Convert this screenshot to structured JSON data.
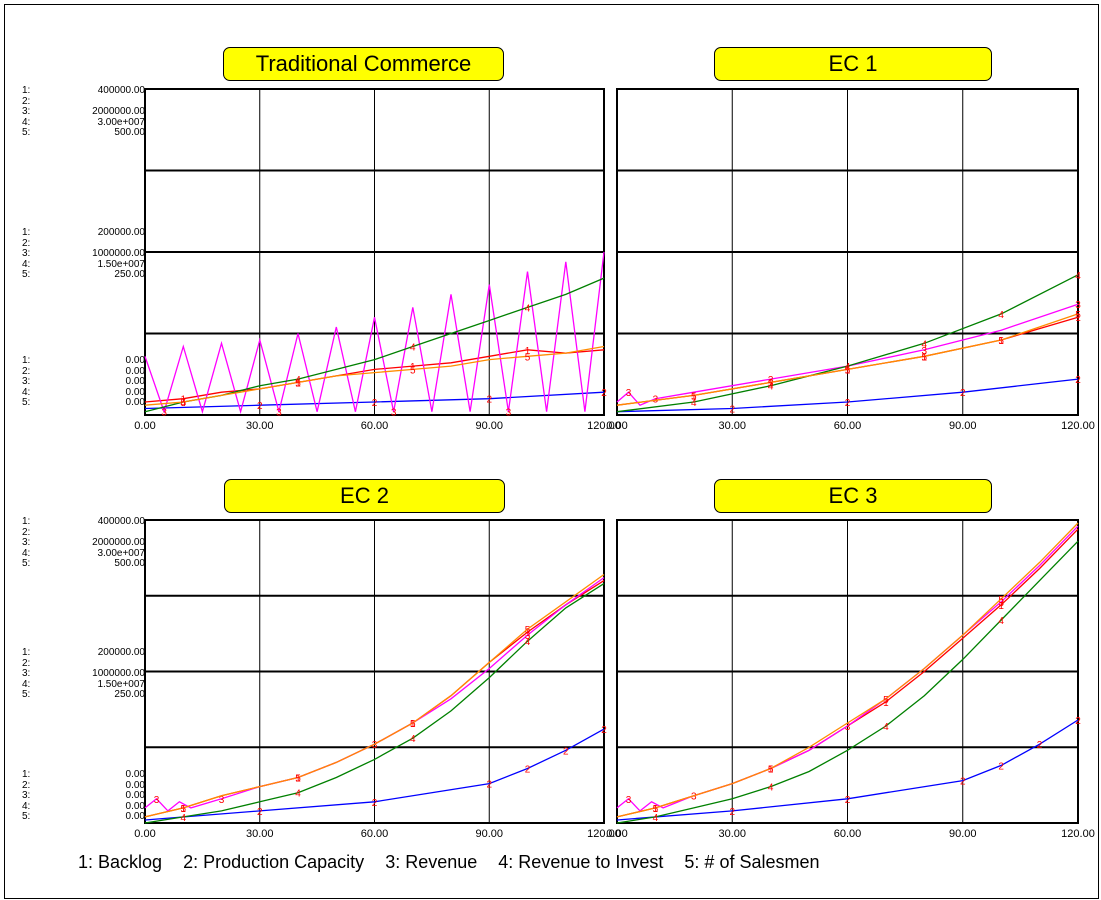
{
  "legend": [
    {
      "id": "1",
      "text": "1: Backlog",
      "color": "#ff0000"
    },
    {
      "id": "2",
      "text": "2: Production Capacity",
      "color": "#0000ff"
    },
    {
      "id": "3",
      "text": "3: Revenue",
      "color": "#ff00ff"
    },
    {
      "id": "4",
      "text": "4: Revenue to Invest",
      "color": "#008000"
    },
    {
      "id": "5",
      "text": "5: # of Salesmen",
      "color": "#ff8c00"
    }
  ],
  "axis_scales": [
    {
      "series": "1:",
      "top": "400000.00",
      "mid": "200000.00",
      "bottom": "0.00"
    },
    {
      "series": "2:",
      "top": "",
      "mid": "",
      "bottom": "0.00"
    },
    {
      "series": "3:",
      "top": "2000000.00",
      "mid": "1000000.00",
      "bottom": "0.00"
    },
    {
      "series": "4:",
      "top": "3.00e+007",
      "mid": "1.50e+007",
      "bottom": "0.00"
    },
    {
      "series": "5:",
      "top": "500.00",
      "mid": "250.00",
      "bottom": "0.00"
    }
  ],
  "chart_data": [
    {
      "title": "Traditional Commerce",
      "type": "line",
      "xlim": [
        0,
        120
      ],
      "x_ticks": [
        "0.00",
        "30.00",
        "60.00",
        "90.00",
        "120.00"
      ],
      "grid": true,
      "series": [
        {
          "name": "1: Backlog",
          "color": "#ff0000",
          "x": [
            0,
            10,
            20,
            30,
            40,
            50,
            60,
            70,
            80,
            90,
            100,
            110,
            120
          ],
          "y": [
            0.04,
            0.05,
            0.07,
            0.08,
            0.1,
            0.12,
            0.14,
            0.15,
            0.16,
            0.18,
            0.2,
            0.19,
            0.2
          ]
        },
        {
          "name": "2: Production Capacity",
          "color": "#0000ff",
          "x": [
            0,
            30,
            60,
            90,
            120
          ],
          "y": [
            0.02,
            0.03,
            0.04,
            0.05,
            0.07
          ]
        },
        {
          "name": "3: Revenue",
          "color": "#ff00ff",
          "x": [
            0,
            5,
            10,
            15,
            20,
            25,
            30,
            35,
            40,
            45,
            50,
            55,
            60,
            65,
            70,
            75,
            80,
            85,
            90,
            95,
            100,
            105,
            110,
            115,
            120
          ],
          "y": [
            0.18,
            0.01,
            0.21,
            0.01,
            0.22,
            0.01,
            0.23,
            0.01,
            0.25,
            0.01,
            0.27,
            0.01,
            0.3,
            0.01,
            0.33,
            0.01,
            0.37,
            0.01,
            0.4,
            0.01,
            0.44,
            0.01,
            0.47,
            0.01,
            0.5
          ]
        },
        {
          "name": "4: Revenue to Invest",
          "color": "#008000",
          "x": [
            0,
            10,
            20,
            30,
            40,
            50,
            60,
            70,
            80,
            90,
            100,
            110,
            120
          ],
          "y": [
            0.01,
            0.04,
            0.06,
            0.09,
            0.11,
            0.14,
            0.17,
            0.21,
            0.25,
            0.29,
            0.33,
            0.37,
            0.42
          ]
        },
        {
          "name": "5: # of Salesmen",
          "color": "#ff8c00",
          "x": [
            0,
            10,
            20,
            30,
            40,
            50,
            60,
            70,
            80,
            90,
            100,
            110,
            120
          ],
          "y": [
            0.03,
            0.04,
            0.06,
            0.08,
            0.1,
            0.12,
            0.13,
            0.14,
            0.15,
            0.17,
            0.18,
            0.19,
            0.21
          ]
        }
      ]
    },
    {
      "title": "EC 1",
      "type": "line",
      "xlim": [
        0,
        120
      ],
      "x_ticks": [
        "0.00",
        "30.00",
        "60.00",
        "90.00",
        "120.00"
      ],
      "grid": true,
      "series": [
        {
          "name": "1: Backlog",
          "color": "#ff0000",
          "x": [
            0,
            20,
            40,
            60,
            80,
            100,
            120
          ],
          "y": [
            0.03,
            0.06,
            0.1,
            0.14,
            0.18,
            0.23,
            0.3
          ]
        },
        {
          "name": "2: Production Capacity",
          "color": "#0000ff",
          "x": [
            0,
            30,
            60,
            90,
            120
          ],
          "y": [
            0.01,
            0.02,
            0.04,
            0.07,
            0.11
          ]
        },
        {
          "name": "3: Revenue",
          "color": "#ff00ff",
          "x": [
            0,
            3,
            6,
            10,
            20,
            40,
            60,
            80,
            100,
            120
          ],
          "y": [
            0.04,
            0.07,
            0.03,
            0.05,
            0.07,
            0.11,
            0.15,
            0.2,
            0.26,
            0.34
          ]
        },
        {
          "name": "4: Revenue to Invest",
          "color": "#008000",
          "x": [
            0,
            20,
            40,
            60,
            80,
            100,
            120
          ],
          "y": [
            0.01,
            0.04,
            0.09,
            0.15,
            0.22,
            0.31,
            0.43
          ]
        },
        {
          "name": "5: # of Salesmen",
          "color": "#ff8c00",
          "x": [
            0,
            20,
            40,
            60,
            80,
            100,
            120
          ],
          "y": [
            0.03,
            0.06,
            0.1,
            0.14,
            0.18,
            0.23,
            0.31
          ]
        }
      ]
    },
    {
      "title": "EC 2",
      "type": "line",
      "xlim": [
        0,
        120
      ],
      "x_ticks": [
        "0.00",
        "30.00",
        "60.00",
        "90.00",
        "120.00"
      ],
      "grid": true,
      "series": [
        {
          "name": "1: Backlog",
          "color": "#ff0000",
          "x": [
            0,
            10,
            20,
            30,
            40,
            50,
            60,
            70,
            80,
            90,
            100,
            110,
            120
          ],
          "y": [
            0.02,
            0.05,
            0.09,
            0.12,
            0.15,
            0.2,
            0.26,
            0.33,
            0.42,
            0.53,
            0.63,
            0.72,
            0.8
          ]
        },
        {
          "name": "2: Production Capacity",
          "color": "#0000ff",
          "x": [
            0,
            30,
            60,
            90,
            100,
            110,
            120
          ],
          "y": [
            0.01,
            0.04,
            0.07,
            0.13,
            0.18,
            0.24,
            0.31
          ]
        },
        {
          "name": "3: Revenue",
          "color": "#ff00ff",
          "x": [
            0,
            3,
            6,
            9,
            12,
            20,
            30,
            40,
            50,
            60,
            70,
            80,
            90,
            100,
            110,
            120
          ],
          "y": [
            0.05,
            0.08,
            0.04,
            0.07,
            0.05,
            0.08,
            0.12,
            0.15,
            0.2,
            0.26,
            0.33,
            0.41,
            0.51,
            0.62,
            0.72,
            0.81
          ]
        },
        {
          "name": "4: Revenue to Invest",
          "color": "#008000",
          "x": [
            0,
            10,
            20,
            30,
            40,
            50,
            60,
            70,
            80,
            90,
            100,
            110,
            120
          ],
          "y": [
            0.0,
            0.02,
            0.04,
            0.07,
            0.1,
            0.15,
            0.21,
            0.28,
            0.37,
            0.48,
            0.6,
            0.71,
            0.79
          ]
        },
        {
          "name": "5: # of Salesmen",
          "color": "#ff8c00",
          "x": [
            0,
            10,
            20,
            30,
            40,
            50,
            60,
            70,
            80,
            90,
            100,
            110,
            120
          ],
          "y": [
            0.02,
            0.05,
            0.09,
            0.12,
            0.15,
            0.2,
            0.26,
            0.33,
            0.42,
            0.53,
            0.64,
            0.73,
            0.82
          ]
        }
      ]
    },
    {
      "title": "EC 3",
      "type": "line",
      "xlim": [
        0,
        120
      ],
      "x_ticks": [
        "0.00",
        "30.00",
        "60.00",
        "90.00",
        "120.00"
      ],
      "grid": true,
      "series": [
        {
          "name": "1: Backlog",
          "color": "#ff0000",
          "x": [
            0,
            10,
            20,
            30,
            40,
            50,
            60,
            70,
            80,
            90,
            100,
            110,
            120
          ],
          "y": [
            0.02,
            0.05,
            0.09,
            0.13,
            0.18,
            0.24,
            0.32,
            0.4,
            0.5,
            0.61,
            0.72,
            0.84,
            0.97
          ]
        },
        {
          "name": "2: Production Capacity",
          "color": "#0000ff",
          "x": [
            0,
            30,
            60,
            90,
            100,
            110,
            120
          ],
          "y": [
            0.01,
            0.04,
            0.08,
            0.14,
            0.19,
            0.26,
            0.34
          ]
        },
        {
          "name": "3: Revenue",
          "color": "#ff00ff",
          "x": [
            0,
            3,
            6,
            9,
            12,
            20,
            30,
            40,
            50,
            60,
            70,
            80,
            90,
            100,
            110,
            120
          ],
          "y": [
            0.05,
            0.08,
            0.04,
            0.07,
            0.05,
            0.09,
            0.13,
            0.18,
            0.24,
            0.32,
            0.41,
            0.51,
            0.62,
            0.73,
            0.85,
            0.98
          ]
        },
        {
          "name": "4: Revenue to Invest",
          "color": "#008000",
          "x": [
            0,
            10,
            20,
            30,
            40,
            50,
            60,
            70,
            80,
            90,
            100,
            110,
            120
          ],
          "y": [
            0.0,
            0.02,
            0.05,
            0.08,
            0.12,
            0.17,
            0.24,
            0.32,
            0.42,
            0.54,
            0.67,
            0.8,
            0.93
          ]
        },
        {
          "name": "5: # of Salesmen",
          "color": "#ff8c00",
          "x": [
            0,
            10,
            20,
            30,
            40,
            50,
            60,
            70,
            80,
            90,
            100,
            110,
            120
          ],
          "y": [
            0.02,
            0.05,
            0.09,
            0.13,
            0.18,
            0.25,
            0.33,
            0.41,
            0.51,
            0.62,
            0.74,
            0.86,
            0.99
          ]
        }
      ]
    }
  ]
}
